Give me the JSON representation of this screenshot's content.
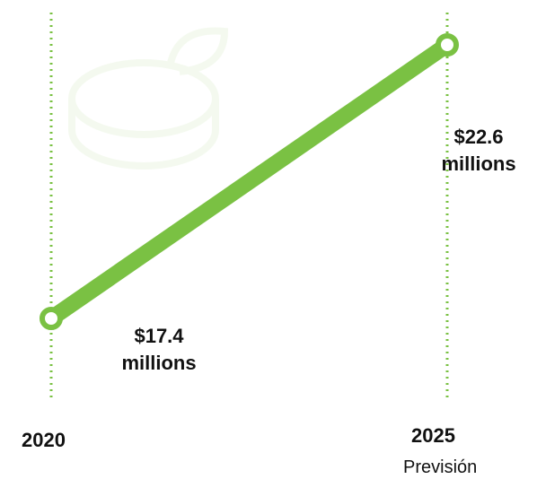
{
  "chart_data": {
    "type": "line",
    "categories": [
      "2020",
      "2025"
    ],
    "values": [
      17.4,
      22.6
    ],
    "value_labels": [
      "$17.4 millions",
      "$22.6 millions"
    ],
    "annotations": [
      "Previsión"
    ],
    "color": "#7ac143"
  }
}
